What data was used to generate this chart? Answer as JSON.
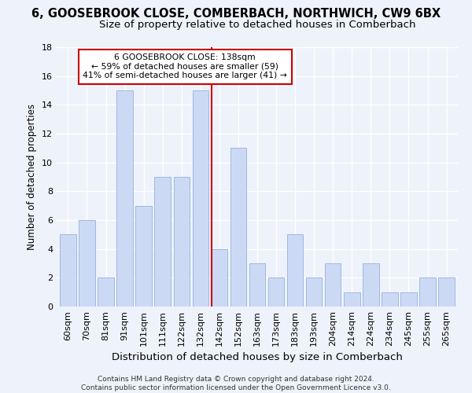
{
  "title1": "6, GOOSEBROOK CLOSE, COMBERBACH, NORTHWICH, CW9 6BX",
  "title2": "Size of property relative to detached houses in Comberbach",
  "xlabel": "Distribution of detached houses by size in Comberbach",
  "ylabel": "Number of detached properties",
  "categories": [
    "60sqm",
    "70sqm",
    "81sqm",
    "91sqm",
    "101sqm",
    "111sqm",
    "122sqm",
    "132sqm",
    "142sqm",
    "152sqm",
    "163sqm",
    "173sqm",
    "183sqm",
    "193sqm",
    "204sqm",
    "214sqm",
    "224sqm",
    "234sqm",
    "245sqm",
    "255sqm",
    "265sqm"
  ],
  "values": [
    5,
    6,
    2,
    15,
    7,
    9,
    9,
    15,
    4,
    11,
    3,
    2,
    5,
    2,
    3,
    1,
    3,
    1,
    1,
    2,
    2
  ],
  "bar_color": "#ccd9f5",
  "bar_edge_color": "#a0b8e0",
  "highlight_bar_index": 8,
  "highlight_line_color": "#cc0000",
  "ylim": [
    0,
    18
  ],
  "yticks": [
    0,
    2,
    4,
    6,
    8,
    10,
    12,
    14,
    16,
    18
  ],
  "annotation_line1": "6 GOOSEBROOK CLOSE: 138sqm",
  "annotation_line2": "← 59% of detached houses are smaller (59)",
  "annotation_line3": "41% of semi-detached houses are larger (41) →",
  "annotation_box_color": "#cc0000",
  "footer1": "Contains HM Land Registry data © Crown copyright and database right 2024.",
  "footer2": "Contains public sector information licensed under the Open Government Licence v3.0.",
  "bg_color": "#eef2fb",
  "grid_color": "#ffffff",
  "title1_fontsize": 10.5,
  "title2_fontsize": 9.5,
  "xlabel_fontsize": 9.5,
  "ylabel_fontsize": 8.5,
  "tick_fontsize": 8,
  "footer_fontsize": 6.5
}
